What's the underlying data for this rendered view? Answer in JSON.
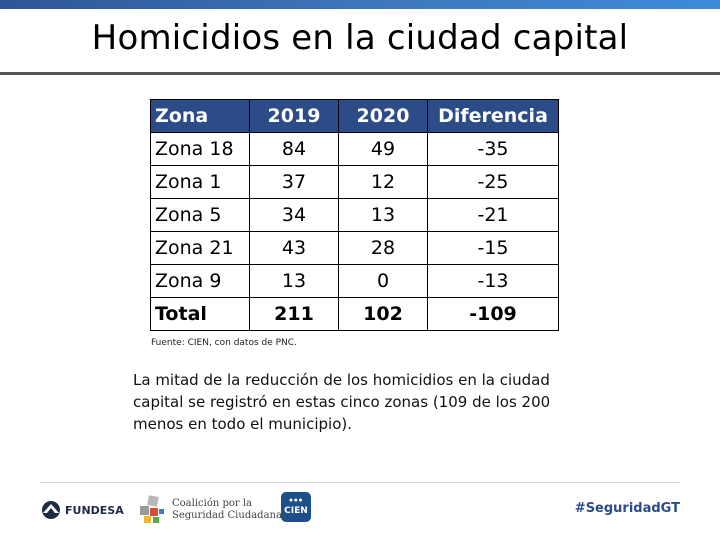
{
  "slide": {
    "title": "Homicidios en la ciudad capital",
    "accent_color": "#2b4c87"
  },
  "table": {
    "headers": [
      "Zona",
      "2019",
      "2020",
      "Diferencia"
    ],
    "rows": [
      [
        "Zona 18",
        "84",
        "49",
        "-35"
      ],
      [
        "Zona 1",
        "37",
        "12",
        "-25"
      ],
      [
        "Zona 5",
        "34",
        "13",
        "-21"
      ],
      [
        "Zona 21",
        "43",
        "28",
        "-15"
      ],
      [
        "Zona 9",
        "13",
        "0",
        "-13"
      ],
      [
        "Total",
        "211",
        "102",
        "-109"
      ]
    ]
  },
  "source": "Fuente: CIEN, con datos de PNC.",
  "note": "La mitad de la reducción de los homicidios en la ciudad capital se registró en estas cinco zonas (109 de los 200 menos en todo el municipio).",
  "footer": {
    "fundesa": "FUNDESA",
    "coalicion_line1": "Coalición por la",
    "coalicion_line2": "Seguridad Ciudadana",
    "cien": "CIEN",
    "hashtag": "#SeguridadGT"
  }
}
